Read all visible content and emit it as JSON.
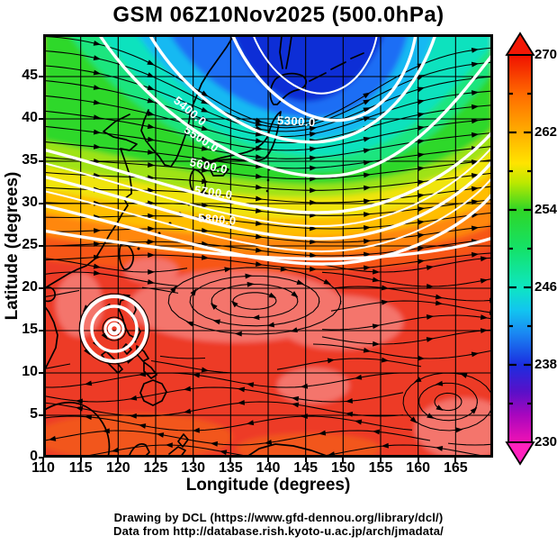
{
  "title": "GSM 06Z10Nov2025 (500.0hPa)",
  "chart_data": {
    "type": "heatmap",
    "title": "GSM 06Z10Nov2025 (500.0hPa)",
    "xlabel": "Longitude (degrees)",
    "ylabel": "Latitude (degrees)",
    "xlim": [
      110,
      170
    ],
    "ylim": [
      0,
      50
    ],
    "x_ticks": [
      110,
      115,
      120,
      125,
      130,
      135,
      140,
      145,
      150,
      155,
      160,
      165
    ],
    "y_ticks": [
      0,
      5,
      10,
      15,
      20,
      25,
      30,
      35,
      40,
      45
    ],
    "grid": true,
    "grid_step_degrees": 5,
    "colorbar": {
      "min": 230,
      "max": 270,
      "ticks": [
        270,
        262,
        254,
        246,
        238,
        230
      ],
      "minor_tick_step": 4,
      "orientation": "vertical-right",
      "arrow_top_color": "#F21805",
      "arrow_bottom_color": "#FF22BE",
      "stops": [
        {
          "pos": 0,
          "color": "#F01000"
        },
        {
          "pos": 10,
          "color": "#FF6A00"
        },
        {
          "pos": 20,
          "color": "#FFAE00"
        },
        {
          "pos": 28,
          "color": "#FFE400"
        },
        {
          "pos": 33,
          "color": "#BCE800"
        },
        {
          "pos": 40,
          "color": "#2FD626"
        },
        {
          "pos": 50,
          "color": "#14E268"
        },
        {
          "pos": 60,
          "color": "#0EE6C2"
        },
        {
          "pos": 66,
          "color": "#12C4F0"
        },
        {
          "pos": 72,
          "color": "#1A86F2"
        },
        {
          "pos": 80,
          "color": "#1B2DE0"
        },
        {
          "pos": 87,
          "color": "#5A10C8"
        },
        {
          "pos": 93,
          "color": "#A906BE"
        },
        {
          "pos": 100,
          "color": "#F012B4"
        }
      ]
    },
    "contours": {
      "color": "#ffffff",
      "labels": [
        "5300.0",
        "5400.0",
        "5500.0",
        "5600.0",
        "5700.0",
        "5800.0"
      ]
    },
    "overlays": [
      "temperature shading",
      "geopotential height contours",
      "wind streamlines",
      "coastlines",
      "tropical cyclone ring"
    ],
    "field_colors": {
      "deep_blue": "#0B2FD6",
      "blue": "#1E6EF5",
      "cyan": "#16B9F2",
      "teal": "#0EE2BE",
      "spring_green": "#1CE57E",
      "green": "#2ED829",
      "yellow_green": "#9FE312",
      "yellow": "#F0E40C",
      "amber": "#FFBE06",
      "orange": "#FF870D",
      "orange_red": "#F75713",
      "red": "#ED3A28",
      "warm_salmon": "#F4746C"
    }
  },
  "footer": {
    "line1": "Drawing by DCL (https://www.gfd-dennou.org/library/dcl/)",
    "line2": "Data from http://database.rish.kyoto-u.ac.jp/arch/jmadata/"
  }
}
